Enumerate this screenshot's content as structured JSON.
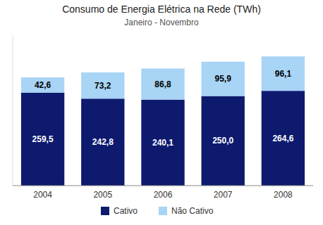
{
  "chart_data": {
    "type": "bar",
    "title": "Consumo de Energia Elétrica na Rede (TWh)",
    "subtitle": "Janeiro - Novembro",
    "categories": [
      "2004",
      "2005",
      "2006",
      "2007",
      "2008"
    ],
    "series": [
      {
        "name": "Cativo",
        "color": "#0d1a6e",
        "values": [
          259.5,
          242.8,
          240.1,
          250.0,
          264.6
        ],
        "value_labels": [
          "259,5",
          "242,8",
          "240,1",
          "250,0",
          "264,6"
        ]
      },
      {
        "name": "Não Cativo",
        "color": "#a8d4f5",
        "values": [
          42.6,
          73.2,
          86.8,
          95.9,
          96.1
        ],
        "value_labels": [
          "42,6",
          "73,2",
          "86,8",
          "95,9",
          "96,1"
        ]
      }
    ],
    "ylim": [
      0,
      420
    ],
    "stacked": true,
    "data_labels": true,
    "grid": false,
    "legend": "bottom",
    "tick_labels": "x"
  }
}
